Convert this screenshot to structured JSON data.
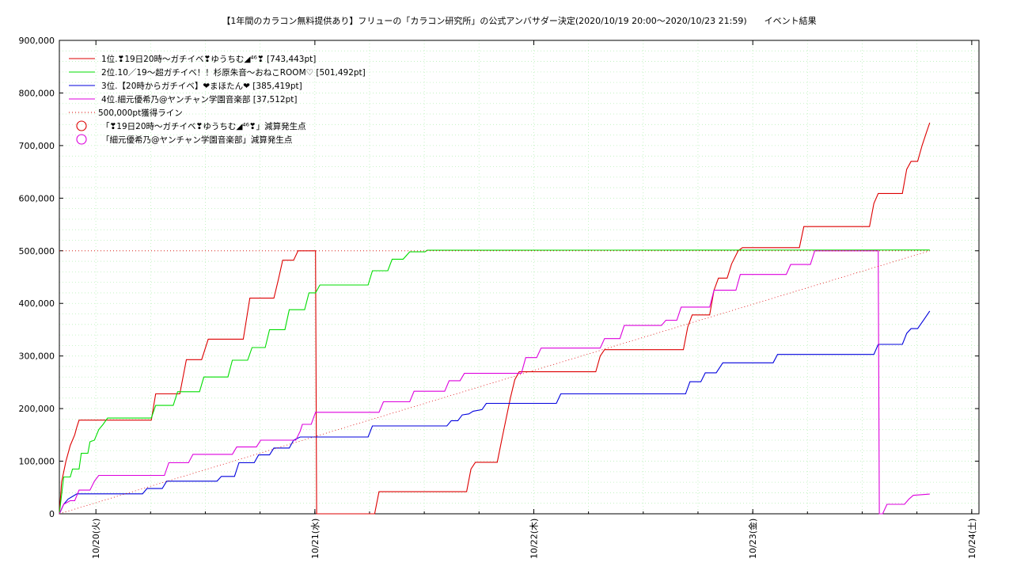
{
  "chart_data": {
    "type": "line",
    "title": "【1年間のカラコン無料提供あり】フリューの「カラコン研究所」の公式アンバサダー決定(2020/10/19 20:00〜2020/10/23 21:59)　　イベント結果",
    "xlabel": "",
    "ylabel": "",
    "xlim": [
      0,
      4.2
    ],
    "ylim": [
      0,
      900000
    ],
    "grid": true,
    "legend_position": "top-left",
    "y_ticks": [
      "0",
      "100,000",
      "200,000",
      "300,000",
      "400,000",
      "500,000",
      "600,000",
      "700,000",
      "800,000",
      "900,000"
    ],
    "y_tick_values": [
      0,
      100000,
      200000,
      300000,
      400000,
      500000,
      600000,
      700000,
      800000,
      900000
    ],
    "x_ticks": [
      "10/20(火)",
      "10/21(水)",
      "10/22(木)",
      "10/23(金)",
      "10/24(土)"
    ],
    "x_tick_values": [
      0.167,
      1.167,
      2.167,
      3.167,
      4.167
    ],
    "series": [
      {
        "name": "1位.❣19日20時〜ガチイベ❣ゆうちむ◢⁴⁶❣ [743,443pt]",
        "color": "#dd0000",
        "points": [
          [
            0,
            0
          ],
          [
            0.01,
            60000
          ],
          [
            0.03,
            100000
          ],
          [
            0.05,
            130000
          ],
          [
            0.07,
            150000
          ],
          [
            0.08,
            165000
          ],
          [
            0.09,
            178000
          ],
          [
            0.42,
            178000
          ],
          [
            0.44,
            228000
          ],
          [
            0.55,
            228000
          ],
          [
            0.58,
            293000
          ],
          [
            0.65,
            293000
          ],
          [
            0.68,
            332000
          ],
          [
            0.84,
            332000
          ],
          [
            0.87,
            410000
          ],
          [
            0.98,
            410000
          ],
          [
            1.0,
            445000
          ],
          [
            1.02,
            482000
          ],
          [
            1.07,
            482000
          ],
          [
            1.09,
            500000
          ],
          [
            1.17,
            500000
          ],
          [
            1.175,
            0
          ],
          [
            1.44,
            0
          ],
          [
            1.46,
            42000
          ],
          [
            1.86,
            42000
          ],
          [
            1.88,
            85000
          ],
          [
            1.9,
            98000
          ],
          [
            2.0,
            98000
          ],
          [
            2.02,
            140000
          ],
          [
            2.04,
            180000
          ],
          [
            2.06,
            220000
          ],
          [
            2.08,
            255000
          ],
          [
            2.1,
            270000
          ],
          [
            2.45,
            270000
          ],
          [
            2.47,
            300000
          ],
          [
            2.49,
            312000
          ],
          [
            2.85,
            312000
          ],
          [
            2.87,
            355000
          ],
          [
            2.89,
            378000
          ],
          [
            2.97,
            378000
          ],
          [
            2.99,
            425000
          ],
          [
            3.01,
            448000
          ],
          [
            3.05,
            448000
          ],
          [
            3.07,
            475000
          ],
          [
            3.1,
            500000
          ],
          [
            3.12,
            506000
          ],
          [
            3.38,
            506000
          ],
          [
            3.4,
            546000
          ],
          [
            3.7,
            546000
          ],
          [
            3.72,
            590000
          ],
          [
            3.74,
            609000
          ],
          [
            3.85,
            609000
          ],
          [
            3.87,
            655000
          ],
          [
            3.89,
            670000
          ],
          [
            3.92,
            670000
          ],
          [
            3.94,
            700000
          ],
          [
            3.96,
            725000
          ],
          [
            3.975,
            743443
          ]
        ]
      },
      {
        "name": "2位.10／19〜超ガチイベ！！杉原朱音〜おねこROOM♡ [501,492pt]",
        "color": "#00dd00",
        "points": [
          [
            0,
            0
          ],
          [
            0.02,
            70000
          ],
          [
            0.05,
            70000
          ],
          [
            0.06,
            85000
          ],
          [
            0.09,
            85000
          ],
          [
            0.1,
            115000
          ],
          [
            0.13,
            115000
          ],
          [
            0.14,
            137000
          ],
          [
            0.16,
            140000
          ],
          [
            0.18,
            160000
          ],
          [
            0.2,
            170000
          ],
          [
            0.22,
            182000
          ],
          [
            0.42,
            182000
          ],
          [
            0.44,
            206000
          ],
          [
            0.52,
            206000
          ],
          [
            0.54,
            232000
          ],
          [
            0.64,
            232000
          ],
          [
            0.66,
            260000
          ],
          [
            0.77,
            260000
          ],
          [
            0.79,
            292000
          ],
          [
            0.86,
            292000
          ],
          [
            0.88,
            316000
          ],
          [
            0.94,
            316000
          ],
          [
            0.96,
            350000
          ],
          [
            1.03,
            350000
          ],
          [
            1.05,
            388000
          ],
          [
            1.12,
            388000
          ],
          [
            1.14,
            420000
          ],
          [
            1.17,
            420000
          ],
          [
            1.19,
            435000
          ],
          [
            1.41,
            435000
          ],
          [
            1.43,
            462000
          ],
          [
            1.5,
            462000
          ],
          [
            1.52,
            484000
          ],
          [
            1.57,
            484000
          ],
          [
            1.6,
            498000
          ],
          [
            1.67,
            498000
          ],
          [
            1.68,
            501000
          ],
          [
            3.975,
            501492
          ]
        ]
      },
      {
        "name": "3位.【20時からガチイベ】❤まほたん❤ [385,419pt]",
        "color": "#0000dd",
        "points": [
          [
            0,
            0
          ],
          [
            0.02,
            18000
          ],
          [
            0.04,
            28000
          ],
          [
            0.06,
            33000
          ],
          [
            0.08,
            38000
          ],
          [
            0.38,
            38000
          ],
          [
            0.4,
            48000
          ],
          [
            0.47,
            48000
          ],
          [
            0.49,
            62000
          ],
          [
            0.72,
            62000
          ],
          [
            0.74,
            71000
          ],
          [
            0.8,
            71000
          ],
          [
            0.82,
            97000
          ],
          [
            0.89,
            97000
          ],
          [
            0.91,
            112000
          ],
          [
            0.96,
            112000
          ],
          [
            0.98,
            125000
          ],
          [
            1.05,
            125000
          ],
          [
            1.07,
            140000
          ],
          [
            1.1,
            146000
          ],
          [
            1.41,
            146000
          ],
          [
            1.43,
            167000
          ],
          [
            1.77,
            167000
          ],
          [
            1.79,
            177000
          ],
          [
            1.82,
            177000
          ],
          [
            1.84,
            188000
          ],
          [
            1.87,
            190000
          ],
          [
            1.89,
            195000
          ],
          [
            1.93,
            198000
          ],
          [
            1.95,
            210000
          ],
          [
            2.27,
            210000
          ],
          [
            2.29,
            228000
          ],
          [
            2.86,
            228000
          ],
          [
            2.88,
            251000
          ],
          [
            2.93,
            251000
          ],
          [
            2.95,
            268000
          ],
          [
            3.0,
            268000
          ],
          [
            3.03,
            287000
          ],
          [
            3.26,
            287000
          ],
          [
            3.28,
            303000
          ],
          [
            3.72,
            303000
          ],
          [
            3.74,
            322000
          ],
          [
            3.85,
            322000
          ],
          [
            3.87,
            343000
          ],
          [
            3.89,
            352000
          ],
          [
            3.92,
            352000
          ],
          [
            3.95,
            370000
          ],
          [
            3.975,
            385419
          ]
        ]
      },
      {
        "name": "4位.細元優希乃@ヤンチャン学園音楽部 [37,512pt]",
        "color": "#dd00dd",
        "points": [
          [
            0,
            0
          ],
          [
            0.02,
            18000
          ],
          [
            0.05,
            25000
          ],
          [
            0.07,
            25000
          ],
          [
            0.09,
            45000
          ],
          [
            0.14,
            45000
          ],
          [
            0.16,
            62000
          ],
          [
            0.18,
            73000
          ],
          [
            0.48,
            73000
          ],
          [
            0.5,
            97000
          ],
          [
            0.59,
            97000
          ],
          [
            0.61,
            113000
          ],
          [
            0.79,
            113000
          ],
          [
            0.81,
            127000
          ],
          [
            0.9,
            127000
          ],
          [
            0.92,
            140000
          ],
          [
            1.08,
            140000
          ],
          [
            1.1,
            157000
          ],
          [
            1.11,
            170000
          ],
          [
            1.15,
            170000
          ],
          [
            1.17,
            193000
          ],
          [
            1.46,
            193000
          ],
          [
            1.48,
            213000
          ],
          [
            1.6,
            213000
          ],
          [
            1.62,
            233000
          ],
          [
            1.76,
            233000
          ],
          [
            1.78,
            253000
          ],
          [
            1.83,
            253000
          ],
          [
            1.85,
            267000
          ],
          [
            2.11,
            267000
          ],
          [
            2.13,
            297000
          ],
          [
            2.18,
            297000
          ],
          [
            2.2,
            315000
          ],
          [
            2.47,
            315000
          ],
          [
            2.49,
            333000
          ],
          [
            2.56,
            333000
          ],
          [
            2.58,
            358000
          ],
          [
            2.75,
            358000
          ],
          [
            2.77,
            368000
          ],
          [
            2.82,
            368000
          ],
          [
            2.84,
            393000
          ],
          [
            2.97,
            393000
          ],
          [
            2.99,
            425000
          ],
          [
            3.09,
            425000
          ],
          [
            3.11,
            455000
          ],
          [
            3.32,
            455000
          ],
          [
            3.34,
            474000
          ],
          [
            3.43,
            474000
          ],
          [
            3.45,
            500000
          ],
          [
            3.74,
            500000
          ],
          [
            3.745,
            0
          ],
          [
            3.76,
            0
          ],
          [
            3.78,
            18000
          ],
          [
            3.86,
            18000
          ],
          [
            3.88,
            28000
          ],
          [
            3.9,
            35000
          ],
          [
            3.975,
            37512
          ]
        ]
      },
      {
        "name": "500,000pt獲得ライン",
        "color": "#dd0000",
        "dotted": true,
        "points": [
          [
            0,
            0
          ],
          [
            3.975,
            500000
          ]
        ]
      },
      {
        "name": "500,000pt獲得ライン",
        "color": "#dd0000",
        "dotted": true,
        "legend": false,
        "points": [
          [
            0,
            500000
          ],
          [
            3.975,
            500000
          ]
        ]
      }
    ],
    "markers": [
      {
        "name": "「❣19日20時〜ガチイベ❣ゆうちむ◢⁴⁶❣」減算発生点",
        "color": "#dd0000"
      },
      {
        "name": "「細元優希乃@ヤンチャン学園音楽部」減算発生点",
        "color": "#dd00dd"
      }
    ]
  }
}
